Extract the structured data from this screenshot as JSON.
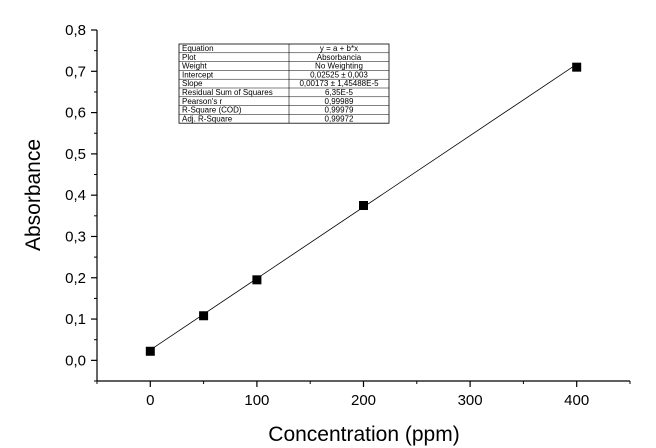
{
  "chart_data": {
    "type": "scatter",
    "title": "",
    "xlabel": "Concentration (ppm)",
    "ylabel": "Absorbance",
    "xlim": [
      -50,
      450
    ],
    "ylim": [
      -0.05,
      0.8
    ],
    "x_ticks": [
      0,
      100,
      200,
      300,
      400
    ],
    "x_tick_labels": [
      "0",
      "100",
      "200",
      "300",
      "400"
    ],
    "y_ticks": [
      0.0,
      0.1,
      0.2,
      0.3,
      0.4,
      0.5,
      0.6,
      0.7,
      0.8
    ],
    "y_tick_labels": [
      "0,0",
      "0,1",
      "0,2",
      "0,3",
      "0,4",
      "0,5",
      "0,6",
      "0,7",
      "0,8"
    ],
    "grid": false,
    "series": [
      {
        "x": [
          0,
          50,
          100,
          200,
          400
        ],
        "y": [
          0.022,
          0.108,
          0.195,
          0.375,
          0.71
        ],
        "marker": "square",
        "color": "#000000"
      }
    ],
    "fit_line": {
      "intercept": 0.02525,
      "slope": 0.00173,
      "x_range": [
        0,
        400
      ],
      "color": "#000000"
    },
    "fit_table": {
      "rows": [
        [
          "Equation",
          "y = a + b*x"
        ],
        [
          "Plot",
          "Absorbancia"
        ],
        [
          "Weight",
          "No Weighting"
        ],
        [
          "Intercept",
          "0,02525 ± 0,003"
        ],
        [
          "Slope",
          "0,00173 ± 1,45488E-5"
        ],
        [
          "Residual Sum of Squares",
          "6,35E-5"
        ],
        [
          "Pearson's r",
          "0,99989"
        ],
        [
          "R-Square (COD)",
          "0,99979"
        ],
        [
          "Adj. R-Square",
          "0,99972"
        ]
      ]
    }
  }
}
